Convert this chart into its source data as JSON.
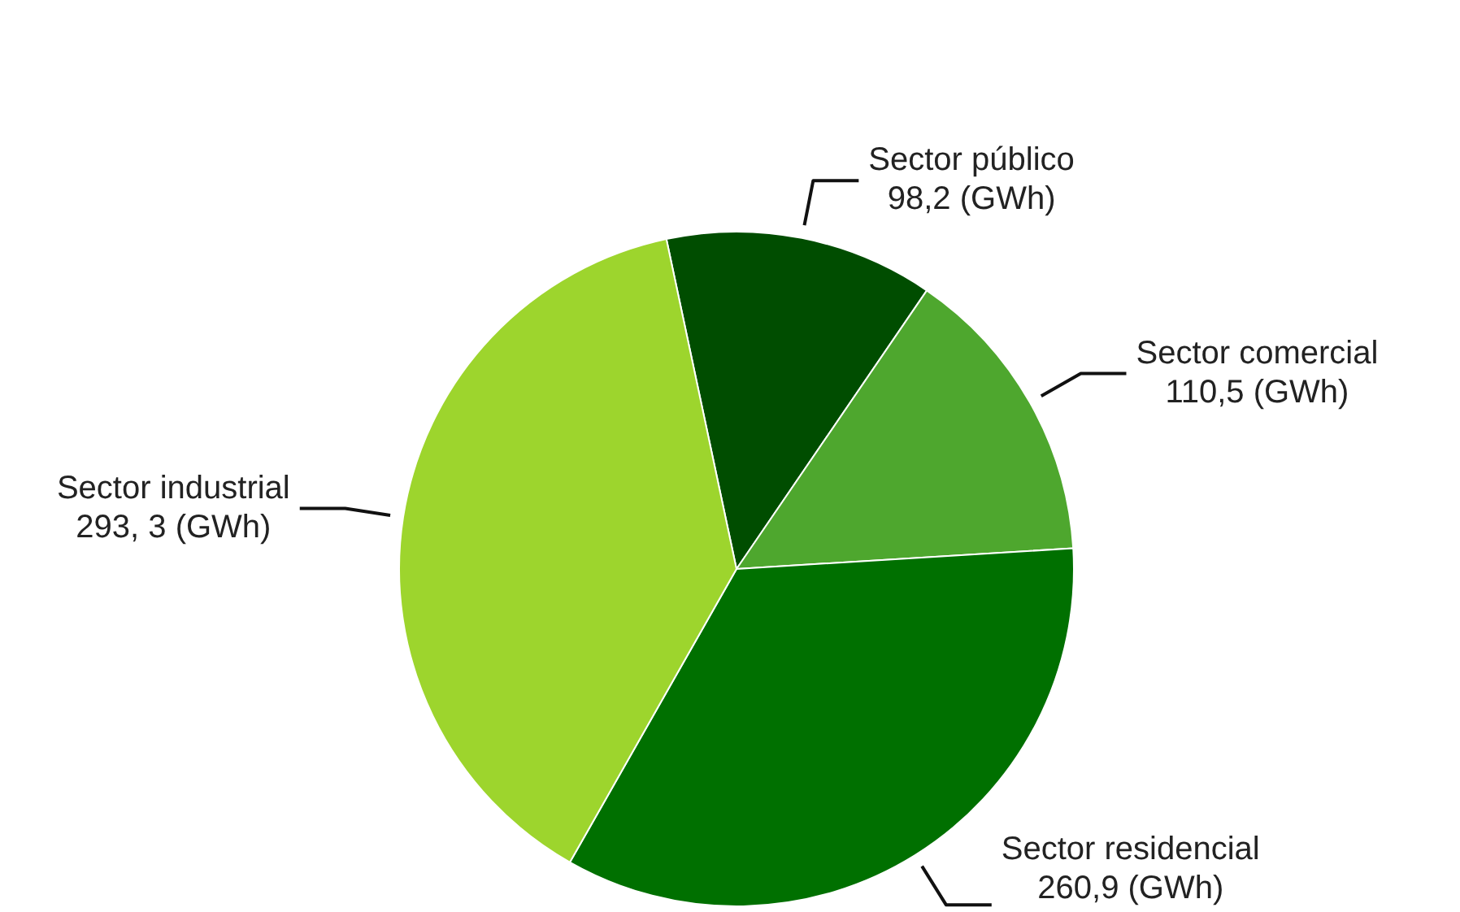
{
  "chart_data": {
    "type": "pie",
    "categories": [
      "Sector público",
      "Sector comercial",
      "Sector residencial",
      "Sector industrial"
    ],
    "values": [
      98.2,
      110.5,
      260.9,
      293.3
    ],
    "value_labels": [
      "98,2 (GWh)",
      "110,5 (GWh)",
      "260,9 (GWh)",
      "293, 3 (GWh)"
    ],
    "colors": [
      "#004d00",
      "#4ea72e",
      "#007000",
      "#9dd52d"
    ],
    "legend": false
  }
}
